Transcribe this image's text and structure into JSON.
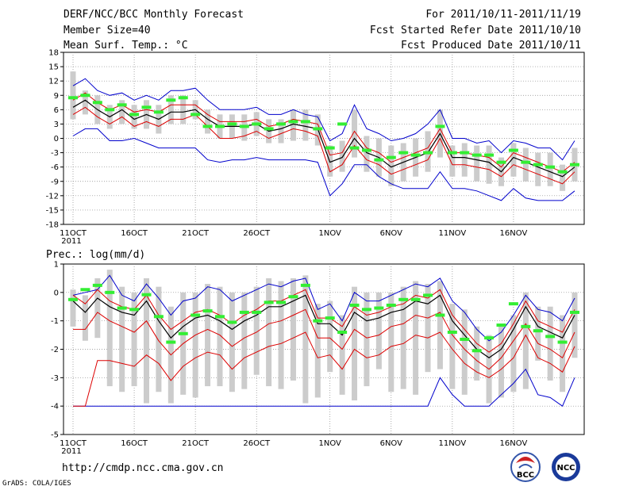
{
  "header": {
    "title": "DERF/NCC/BCC Monthly Forecast",
    "member_size": "Member Size=40",
    "variable": "Mean Surf. Temp.: °C",
    "period": "For 2011/10/11-2011/11/19",
    "start_date": "Fcst Started Refer Date 2011/10/10",
    "produced_date": "Fcst Produced Date 2011/10/11"
  },
  "footer": {
    "url": "http://cmdp.ncc.cma.gov.cn",
    "grads": "GrADS: COLA/IGES",
    "logo_bcc": "BCC",
    "logo_ncc": "NCC"
  },
  "colors": {
    "mean": "#000000",
    "band": "#dd0000",
    "envelope": "#0000cc",
    "obs": "#33ee33",
    "box": "#cccccc",
    "grid": "#888888"
  },
  "chart_data": [
    {
      "type": "line",
      "title": "Mean Surf. Temp.: °C",
      "xlabel": "",
      "ylabel": "°C",
      "ylim": [
        -18,
        18
      ],
      "yticks": [
        18,
        15,
        12,
        9,
        6,
        3,
        0,
        -3,
        -6,
        -9,
        -12,
        -15,
        -18
      ],
      "xticks": [
        {
          "day": 0,
          "label": "11OCT"
        },
        {
          "day": 5,
          "label": "16OCT"
        },
        {
          "day": 10,
          "label": "21OCT"
        },
        {
          "day": 15,
          "label": "26OCT"
        },
        {
          "day": 21,
          "label": "1NOV"
        },
        {
          "day": 26,
          "label": "6NOV"
        },
        {
          "day": 31,
          "label": "11NOV"
        },
        {
          "day": 36,
          "label": "16NOV"
        }
      ],
      "year_label": "2011",
      "days": 40,
      "series": [
        {
          "name": "ensemble_mean",
          "values": [
            6.5,
            8,
            6,
            4.5,
            6,
            4,
            5,
            4,
            5.5,
            5.5,
            6,
            4,
            2.5,
            2.5,
            2.5,
            3,
            1.5,
            2,
            3,
            2.5,
            2,
            -5,
            -4,
            0,
            -3,
            -4,
            -6,
            -5,
            -4,
            -3,
            1,
            -4,
            -4,
            -4.5,
            -5,
            -7,
            -4,
            -5,
            -6,
            -7,
            -8,
            -6
          ]
        },
        {
          "name": "upper_band",
          "values": [
            8,
            9.5,
            7.5,
            6,
            7,
            5.5,
            6,
            5.5,
            7,
            7,
            7,
            5,
            3.5,
            3.5,
            3.5,
            4,
            2.5,
            3,
            4,
            3.5,
            3,
            -3.5,
            -3,
            1.5,
            -2,
            -3,
            -5,
            -4,
            -3,
            -2,
            2,
            -3,
            -3,
            -3.5,
            -4,
            -6,
            -3,
            -4,
            -5,
            -6,
            -7,
            -5
          ]
        },
        {
          "name": "lower_band",
          "values": [
            5,
            6.5,
            4.5,
            3,
            4.5,
            2.5,
            3.5,
            2.5,
            4,
            4,
            5,
            2.5,
            0,
            0,
            0.5,
            1.5,
            0,
            1,
            2,
            1.5,
            0.5,
            -7,
            -5.5,
            -1.5,
            -4.5,
            -5.5,
            -7.5,
            -6.5,
            -5.5,
            -4.5,
            0,
            -5.5,
            -5.5,
            -6,
            -6.5,
            -8,
            -5.5,
            -6.5,
            -7.5,
            -8.5,
            -9.5,
            -7
          ]
        },
        {
          "name": "max_envelope",
          "values": [
            11,
            12.5,
            10,
            9,
            9.5,
            8,
            9,
            8,
            10,
            10,
            10.5,
            8,
            6,
            6,
            6,
            6.5,
            5,
            5,
            6,
            5,
            4.5,
            -0.5,
            1,
            7,
            2,
            1,
            -0.5,
            0,
            1,
            3,
            6,
            0,
            0,
            -1,
            -0.5,
            -3,
            -0.5,
            -1,
            -2,
            -2,
            -4.5,
            -0.5
          ]
        },
        {
          "name": "min_envelope",
          "values": [
            0.5,
            2,
            2,
            -0.5,
            -0.5,
            0,
            -1,
            -2,
            -2,
            -2,
            -2,
            -4.5,
            -5,
            -4.5,
            -4.5,
            -4,
            -4.5,
            -4.5,
            -4.5,
            -4.5,
            -5,
            -12,
            -9.5,
            -5.5,
            -5.5,
            -8,
            -9.5,
            -10.5,
            -10.5,
            -10.5,
            -7,
            -10.5,
            -10.5,
            -11,
            -12,
            -13,
            -10.5,
            -12.5,
            -13,
            -13,
            -13,
            -11
          ]
        },
        {
          "name": "observed",
          "values": [
            8.5,
            9,
            7.5,
            6,
            7,
            5,
            6.5,
            5.5,
            8,
            8.5,
            5,
            2.5,
            2.5,
            3,
            2.5,
            3,
            2,
            3,
            3.5,
            3.5,
            2,
            -2,
            3,
            -2,
            -2.5,
            -4.5,
            -4,
            -3,
            -3.5,
            -3,
            2.5,
            -3,
            -3,
            -3.5,
            -3.5,
            -5,
            -2.5,
            -5,
            -5.5,
            -6,
            -7,
            -5.5
          ]
        },
        {
          "name": "box_top",
          "values": [
            14,
            10,
            9,
            7,
            8,
            7,
            8,
            7,
            9,
            9,
            8,
            6,
            5,
            5,
            5,
            5.5,
            4,
            4,
            6,
            6,
            5,
            -1.5,
            -0.5,
            6,
            0.5,
            0,
            -1.5,
            -1,
            0,
            1.5,
            6,
            -1.5,
            -1,
            -1.5,
            -1.5,
            -4,
            -1,
            -2,
            -3,
            -3,
            -5.5,
            -2
          ]
        },
        {
          "name": "box_bottom",
          "values": [
            4,
            5,
            3,
            2,
            3,
            2,
            2,
            1,
            3,
            3,
            4,
            1,
            0,
            0,
            -0.5,
            0.5,
            -1,
            -1,
            -0.5,
            -0.5,
            -1.5,
            -8,
            -7,
            -4,
            -7,
            -8,
            -10,
            -9,
            -8,
            -7,
            -4,
            -8,
            -8,
            -9,
            -9.5,
            -10,
            -8,
            -9,
            -10,
            -10,
            -11,
            -9
          ]
        }
      ]
    },
    {
      "type": "line",
      "title": "Prec.: log(mm/d)",
      "xlabel": "",
      "ylabel": "log(mm/d)",
      "ylim": [
        -5,
        1
      ],
      "yticks": [
        1,
        0,
        -1,
        -2,
        -3,
        -4,
        -5
      ],
      "xticks": [
        {
          "day": 0,
          "label": "11OCT"
        },
        {
          "day": 5,
          "label": "16OCT"
        },
        {
          "day": 10,
          "label": "21OCT"
        },
        {
          "day": 15,
          "label": "26OCT"
        },
        {
          "day": 21,
          "label": "1NOV"
        },
        {
          "day": 26,
          "label": "6NOV"
        },
        {
          "day": 31,
          "label": "11NOV"
        },
        {
          "day": 36,
          "label": "16NOV"
        }
      ],
      "year_label": "2011",
      "days": 40,
      "series": [
        {
          "name": "ensemble_mean",
          "values": [
            -0.3,
            -0.7,
            -0.2,
            -0.5,
            -0.7,
            -0.8,
            -0.3,
            -1,
            -1.6,
            -1.2,
            -0.9,
            -0.8,
            -1,
            -1.3,
            -1,
            -0.8,
            -0.5,
            -0.5,
            -0.3,
            -0.1,
            -1.1,
            -1.1,
            -1.5,
            -0.7,
            -1,
            -0.9,
            -0.7,
            -0.6,
            -0.3,
            -0.4,
            -0.1,
            -1,
            -1.5,
            -2,
            -2.3,
            -2,
            -1.3,
            -0.5,
            -1.2,
            -1.4,
            -1.6,
            -0.8
          ]
        },
        {
          "name": "upper_band",
          "values": [
            -0.1,
            -0.4,
            0.1,
            -0.3,
            -0.5,
            -0.6,
            -0.1,
            -0.8,
            -1.3,
            -1,
            -0.7,
            -0.6,
            -0.8,
            -1.1,
            -0.8,
            -0.6,
            -0.3,
            -0.3,
            -0.1,
            0.1,
            -0.9,
            -0.9,
            -1.2,
            -0.5,
            -0.8,
            -0.7,
            -0.5,
            -0.4,
            -0.1,
            -0.2,
            0.1,
            -0.8,
            -1.3,
            -1.8,
            -2.1,
            -1.8,
            -1.1,
            -0.3,
            -1,
            -1.2,
            -1.4,
            -0.6
          ]
        },
        {
          "name": "lower_band",
          "values": [
            -1.3,
            -1.3,
            -0.7,
            -1,
            -1.2,
            -1.4,
            -1,
            -1.7,
            -2.2,
            -1.8,
            -1.5,
            -1.3,
            -1.5,
            -1.9,
            -1.6,
            -1.4,
            -1.1,
            -1,
            -0.8,
            -0.6,
            -1.6,
            -1.6,
            -2,
            -1.3,
            -1.6,
            -1.5,
            -1.2,
            -1.1,
            -0.8,
            -0.9,
            -0.7,
            -1.5,
            -2,
            -2.4,
            -2.7,
            -2.3,
            -1.7,
            -1.1,
            -1.8,
            -2,
            -2.3,
            -1.4
          ]
        },
        {
          "name": "max_envelope",
          "values": [
            -0.1,
            0,
            0.1,
            0.6,
            -0.1,
            -0.3,
            0.3,
            -0.2,
            -0.8,
            -0.3,
            -0.2,
            0.2,
            0.1,
            -0.3,
            -0.1,
            0.1,
            0.3,
            0.2,
            0.4,
            0.5,
            -0.6,
            -0.4,
            -1,
            0,
            -0.3,
            -0.3,
            -0.1,
            0.1,
            0.3,
            0.2,
            0.5,
            -0.3,
            -0.7,
            -1.3,
            -1.7,
            -1.4,
            -0.8,
            -0.1,
            -0.6,
            -0.7,
            -1,
            -0.2
          ]
        },
        {
          "name": "min_envelope",
          "values": [
            -4,
            -4,
            -4,
            -4,
            -4,
            -4,
            -4,
            -4,
            -4,
            -4,
            -4,
            -4,
            -4,
            -4,
            -4,
            -4,
            -4,
            -4,
            -4,
            -4,
            -4,
            -4,
            -4,
            -4,
            -4,
            -4,
            -4,
            -4,
            -4,
            -4,
            -3,
            -3.6,
            -4,
            -4,
            -4,
            -3.6,
            -3.2,
            -2.7,
            -3.6,
            -3.7,
            -4,
            -3
          ]
        },
        {
          "name": "lower_envelope_red",
          "values": [
            -4,
            -4,
            -2.4,
            -2.4,
            -2.5,
            -2.6,
            -2.2,
            -2.5,
            -3.1,
            -2.6,
            -2.3,
            -2.1,
            -2.2,
            -2.7,
            -2.3,
            -2.1,
            -1.9,
            -1.8,
            -1.6,
            -1.4,
            -2.3,
            -2.2,
            -2.7,
            -2,
            -2.3,
            -2.2,
            -1.9,
            -1.8,
            -1.5,
            -1.6,
            -1.4,
            -2,
            -2.5,
            -2.8,
            -3,
            -2.7,
            -2.3,
            -1.5,
            -2.3,
            -2.5,
            -2.8,
            -1.9
          ]
        },
        {
          "name": "observed",
          "values": [
            -0.25,
            0.1,
            0.25,
            0,
            -0.55,
            -0.6,
            -0.08,
            -0.85,
            -1.75,
            -1.45,
            -0.8,
            -0.65,
            -0.85,
            -1.05,
            -0.7,
            -0.7,
            -0.35,
            -0.35,
            -0.15,
            0.25,
            -1,
            -0.9,
            -1.4,
            -0.45,
            -0.6,
            -0.55,
            -0.45,
            -0.25,
            -0.25,
            -0.1,
            -0.8,
            -1.4,
            -1.65,
            -2.05,
            -1.6,
            -1.15,
            -0.4,
            -1.2,
            -1.35,
            -1.55,
            -1.75,
            -0.7
          ]
        },
        {
          "name": "box_top",
          "values": [
            0.1,
            -0.1,
            0.5,
            0.8,
            0.2,
            0,
            0.5,
            0.2,
            -0.5,
            0,
            0,
            0.3,
            0.2,
            0,
            0,
            0.2,
            0.5,
            0.4,
            0.5,
            0.6,
            -0.4,
            -0.3,
            -0.8,
            0.2,
            0,
            0,
            0,
            0.2,
            0.4,
            0.3,
            0.4,
            -0.4,
            -0.6,
            -1.2,
            -1.5,
            -1.2,
            -0.8,
            0,
            -0.5,
            -0.5,
            -0.8,
            0
          ]
        },
        {
          "name": "box_bottom",
          "values": [
            -1.2,
            -1.7,
            -1.6,
            -3.3,
            -3.5,
            -3.3,
            -3.9,
            -3.5,
            -3.9,
            -3.6,
            -3.7,
            -3.3,
            -3.3,
            -3.5,
            -3.4,
            -2.9,
            -3.3,
            -3.4,
            -3.1,
            -3.9,
            -3.7,
            -2.8,
            -3.6,
            -3.8,
            -3.3,
            -2.7,
            -3.5,
            -3.4,
            -3.6,
            -2.8,
            -2.7,
            -3.4,
            -3.6,
            -3.1,
            -3.9,
            -3.7,
            -3.5,
            -3.4,
            -2.4,
            -3.1,
            -3.5,
            -2.3
          ]
        }
      ]
    }
  ]
}
